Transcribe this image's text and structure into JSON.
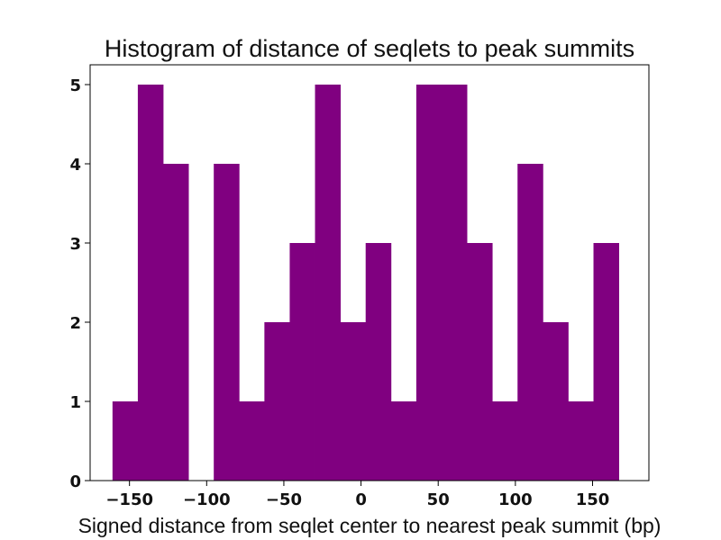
{
  "chart_data": {
    "type": "bar",
    "title": "Histogram of distance of seqlets to peak summits",
    "xlabel": "Signed distance from seqlet center to nearest peak summit (bp)",
    "ylabel": "",
    "xlim": [
      -175.5,
      186.5
    ],
    "ylim": [
      0,
      5.25
    ],
    "bar_color": "#800080",
    "bin_width": 16.4,
    "bins": [
      {
        "left": -161.0,
        "count": 1
      },
      {
        "left": -144.6,
        "count": 5
      },
      {
        "left": -128.2,
        "count": 4
      },
      {
        "left": -111.8,
        "count": 0
      },
      {
        "left": -95.4,
        "count": 4
      },
      {
        "left": -79.0,
        "count": 1
      },
      {
        "left": -62.6,
        "count": 2
      },
      {
        "left": -46.2,
        "count": 3
      },
      {
        "left": -29.8,
        "count": 5
      },
      {
        "left": -13.4,
        "count": 2
      },
      {
        "left": 3.0,
        "count": 3
      },
      {
        "left": 19.4,
        "count": 1
      },
      {
        "left": 35.8,
        "count": 5
      },
      {
        "left": 52.2,
        "count": 5
      },
      {
        "left": 68.6,
        "count": 3
      },
      {
        "left": 85.0,
        "count": 1
      },
      {
        "left": 101.4,
        "count": 4
      },
      {
        "left": 117.8,
        "count": 2
      },
      {
        "left": 134.2,
        "count": 1
      },
      {
        "left": 150.6,
        "count": 3
      }
    ],
    "x_ticks": [
      {
        "value": -150,
        "label": "−150"
      },
      {
        "value": -100,
        "label": "−100"
      },
      {
        "value": -50,
        "label": "−50"
      },
      {
        "value": 0,
        "label": "0"
      },
      {
        "value": 50,
        "label": "50"
      },
      {
        "value": 100,
        "label": "100"
      },
      {
        "value": 150,
        "label": "150"
      }
    ],
    "y_ticks": [
      {
        "value": 0,
        "label": "0"
      },
      {
        "value": 1,
        "label": "1"
      },
      {
        "value": 2,
        "label": "2"
      },
      {
        "value": 3,
        "label": "3"
      },
      {
        "value": 4,
        "label": "4"
      },
      {
        "value": 5,
        "label": "5"
      }
    ]
  }
}
